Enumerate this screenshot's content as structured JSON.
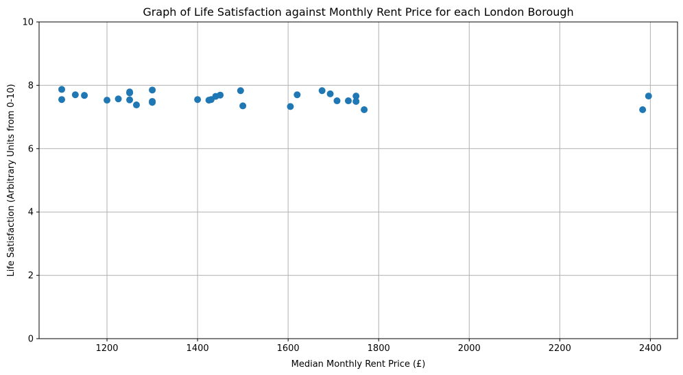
{
  "chart_data": {
    "type": "scatter",
    "title": "Graph of Life Satisfaction against Monthly Rent Price for each London Borough",
    "xlabel": "Median Monthly Rent Price (£)",
    "ylabel": "Life Satisfaction (Arbitrary Units from 0-10)",
    "xlim": [
      1050,
      2460
    ],
    "ylim": [
      0,
      10
    ],
    "x_ticks": [
      1200,
      1400,
      1600,
      1800,
      2000,
      2200,
      2400
    ],
    "y_ticks": [
      0,
      2,
      4,
      6,
      8,
      10
    ],
    "grid": true,
    "marker_color": "#1f77b4",
    "grid_color": "#b0b0b0",
    "points": [
      {
        "x": 1100,
        "y": 7.87
      },
      {
        "x": 1100,
        "y": 7.55
      },
      {
        "x": 1130,
        "y": 7.7
      },
      {
        "x": 1150,
        "y": 7.68
      },
      {
        "x": 1200,
        "y": 7.53
      },
      {
        "x": 1225,
        "y": 7.57
      },
      {
        "x": 1250,
        "y": 7.79
      },
      {
        "x": 1250,
        "y": 7.76
      },
      {
        "x": 1250,
        "y": 7.54
      },
      {
        "x": 1265,
        "y": 7.38
      },
      {
        "x": 1300,
        "y": 7.85
      },
      {
        "x": 1300,
        "y": 7.49
      },
      {
        "x": 1300,
        "y": 7.46
      },
      {
        "x": 1400,
        "y": 7.55
      },
      {
        "x": 1425,
        "y": 7.53
      },
      {
        "x": 1430,
        "y": 7.55
      },
      {
        "x": 1440,
        "y": 7.65
      },
      {
        "x": 1450,
        "y": 7.69
      },
      {
        "x": 1495,
        "y": 7.83
      },
      {
        "x": 1500,
        "y": 7.35
      },
      {
        "x": 1605,
        "y": 7.33
      },
      {
        "x": 1620,
        "y": 7.7
      },
      {
        "x": 1675,
        "y": 7.83
      },
      {
        "x": 1693,
        "y": 7.73
      },
      {
        "x": 1708,
        "y": 7.51
      },
      {
        "x": 1733,
        "y": 7.51
      },
      {
        "x": 1750,
        "y": 7.66
      },
      {
        "x": 1750,
        "y": 7.49
      },
      {
        "x": 1768,
        "y": 7.23
      },
      {
        "x": 2383,
        "y": 7.23
      },
      {
        "x": 2396,
        "y": 7.66
      }
    ]
  }
}
